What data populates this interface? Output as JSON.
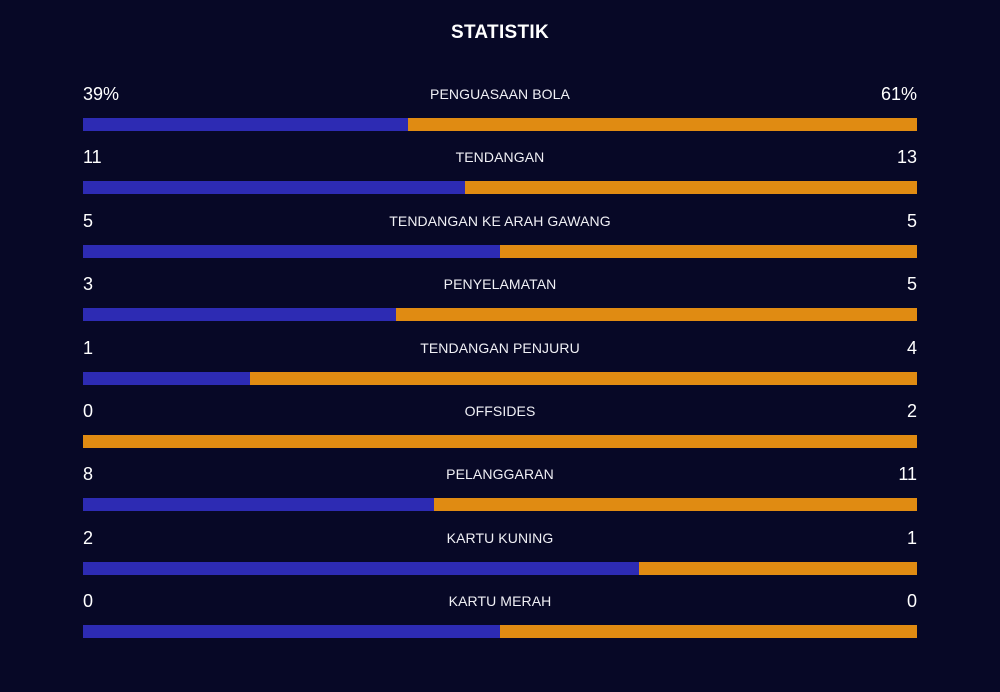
{
  "title": "STATISTIK",
  "colors": {
    "background": "#070826",
    "left_team": "#2d2bb3",
    "right_team": "#e08b12"
  },
  "stats": [
    {
      "label": "PENGUASAAN BOLA",
      "left": "39%",
      "right": "61%",
      "left_share": 0.39
    },
    {
      "label": "TENDANGAN",
      "left": "11",
      "right": "13",
      "left_share": 0.4583
    },
    {
      "label": "TENDANGAN KE ARAH GAWANG",
      "left": "5",
      "right": "5",
      "left_share": 0.5
    },
    {
      "label": "PENYELAMATAN",
      "left": "3",
      "right": "5",
      "left_share": 0.375
    },
    {
      "label": "TENDANGAN PENJURU",
      "left": "1",
      "right": "4",
      "left_share": 0.2
    },
    {
      "label": "OFFSIDES",
      "left": "0",
      "right": "2",
      "left_share": 0.0
    },
    {
      "label": "PELANGGARAN",
      "left": "8",
      "right": "11",
      "left_share": 0.421
    },
    {
      "label": "KARTU KUNING",
      "left": "2",
      "right": "1",
      "left_share": 0.6667
    },
    {
      "label": "KARTU MERAH",
      "left": "0",
      "right": "0",
      "left_share": 0.5
    }
  ]
}
